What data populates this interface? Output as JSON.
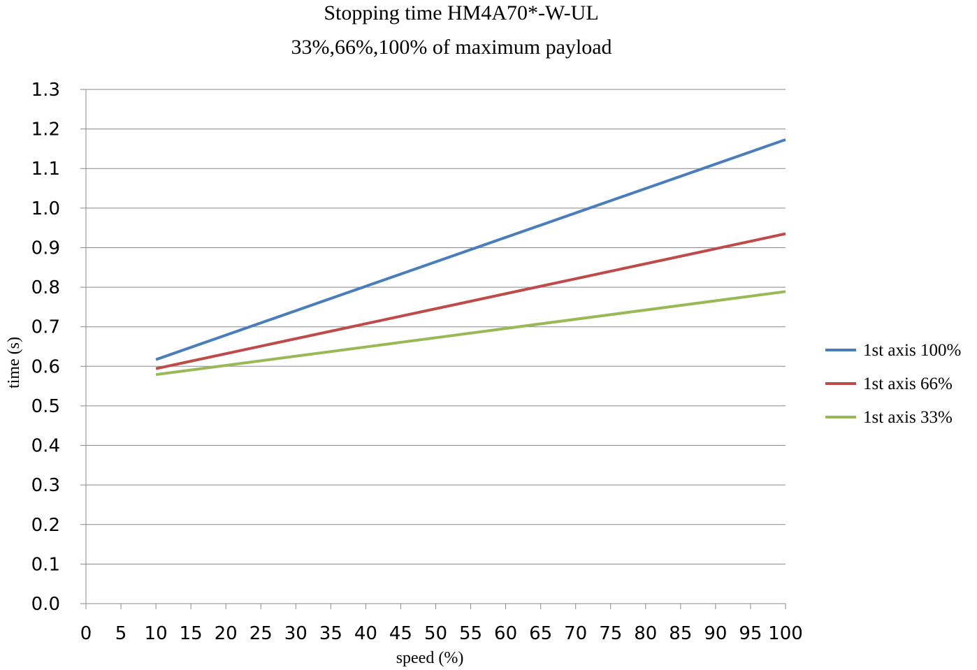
{
  "chart_data": {
    "type": "line",
    "title": "Stopping time HM4A70*-W-UL",
    "subtitle": "33%,66%,100% of maximum payload",
    "xlabel": "speed (%)",
    "ylabel": "time (s)",
    "xlim": [
      0,
      100
    ],
    "ylim": [
      0,
      1.3
    ],
    "xticks": [
      "0",
      "5",
      "10",
      "15",
      "20",
      "25",
      "30",
      "35",
      "40",
      "45",
      "50",
      "55",
      "60",
      "65",
      "70",
      "75",
      "80",
      "85",
      "90",
      "95",
      "100"
    ],
    "yticks": [
      "0.0",
      "0.1",
      "0.2",
      "0.3",
      "0.4",
      "0.5",
      "0.6",
      "0.7",
      "0.8",
      "0.9",
      "1.0",
      "1.1",
      "1.2",
      "1.3"
    ],
    "grid": true,
    "legend_position": "right",
    "series": [
      {
        "name": "1st axis 100%",
        "color": "#4a7ebb",
        "x": [
          10,
          100
        ],
        "y": [
          0.617,
          1.173
        ]
      },
      {
        "name": "1st axis 66%",
        "color": "#be4b48",
        "x": [
          10,
          100
        ],
        "y": [
          0.594,
          0.935
        ]
      },
      {
        "name": "1st axis 33%",
        "color": "#98b954",
        "x": [
          10,
          100
        ],
        "y": [
          0.579,
          0.789
        ]
      }
    ]
  }
}
